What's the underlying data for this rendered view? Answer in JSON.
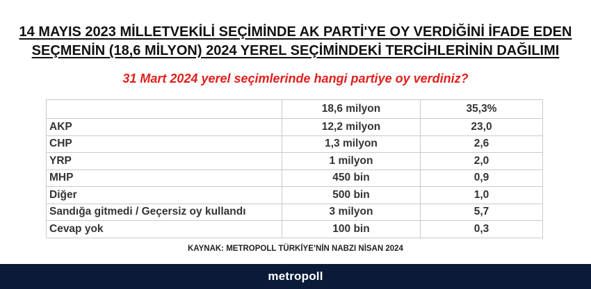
{
  "title_line1": "14 MAYIS 2023 MİLLETVEKİLİ SEÇİMİNDE AK PARTİ'YE OY VERDİĞİNİ İFADE EDEN",
  "title_line2": "SEÇMENİN (18,6 MİLYON) 2024 YEREL SEÇİMİNDEKİ TERCİHLERİNİN DAĞILIMI",
  "question": "31 Mart 2024 yerel seçimlerinde hangi partiye oy verdiniz?",
  "source": "KAYNAK: METROPOLL TÜRKİYE’NİN NABZI NİSAN 2024",
  "brand": "metropoll",
  "colors": {
    "question": "#e0201c",
    "footer_bg": "#0a1a38",
    "footer_text": "#ffffff"
  },
  "chart_data": {
    "type": "table",
    "header": [
      "",
      "18,6 milyon",
      "35,3%"
    ],
    "rows": [
      [
        "AKP",
        "12,2 milyon",
        "23,0"
      ],
      [
        "CHP",
        "1,3 milyon",
        "2,6"
      ],
      [
        "YRP",
        "1 milyon",
        "2,0"
      ],
      [
        "MHP",
        "450 bin",
        "0,9"
      ],
      [
        "Diğer",
        "500 bin",
        "1,0"
      ],
      [
        "Sandığa gitmedi / Geçersiz oy kullandı",
        "3 milyon",
        "5,7"
      ],
      [
        "Cevap yok",
        "100 bin",
        "0,3"
      ]
    ]
  }
}
